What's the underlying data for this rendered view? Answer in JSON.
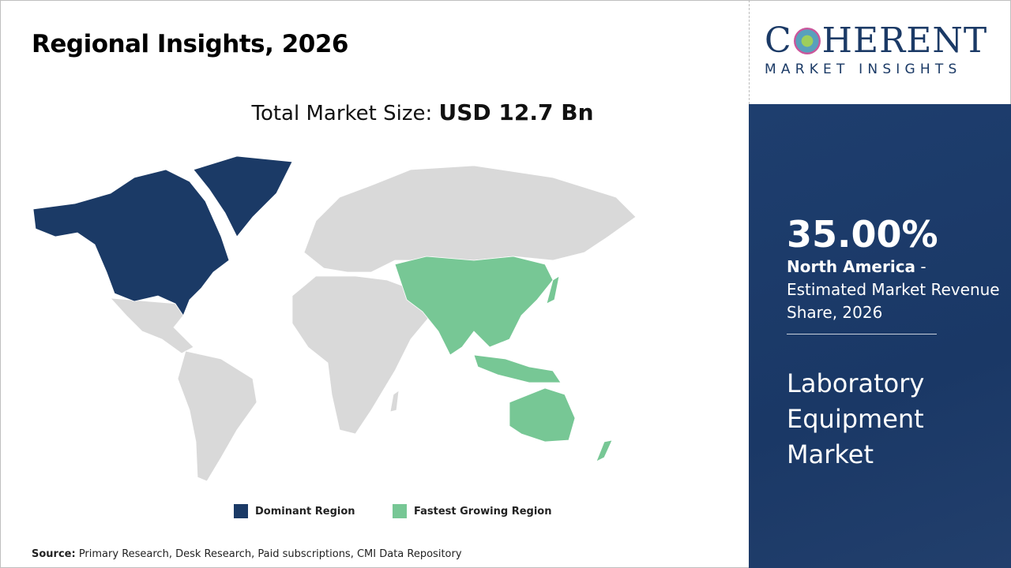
{
  "header": {
    "title": "Regional Insights, 2026",
    "total_label": "Total Market Size:",
    "total_value": "USD 12.7 Bn"
  },
  "logo": {
    "name": "COHERENT",
    "tagline": "MARKET INSIGHTS"
  },
  "panel": {
    "share": "35.00%",
    "region": "North America",
    "share_desc": " - Estimated Market Revenue Share, 2026",
    "market": "Laboratory Equipment Market"
  },
  "legend": [
    {
      "label": "Dominant Region",
      "color": "#1b3a66"
    },
    {
      "label": "Fastest Growing Region",
      "color": "#77c795"
    }
  ],
  "map": {
    "dominant": "North America",
    "fastest": "Asia Pacific",
    "other_color": "#d9d9d9"
  },
  "source": {
    "label": "Source:",
    "text": " Primary Research, Desk Research, Paid subscriptions, CMI Data Repository"
  }
}
